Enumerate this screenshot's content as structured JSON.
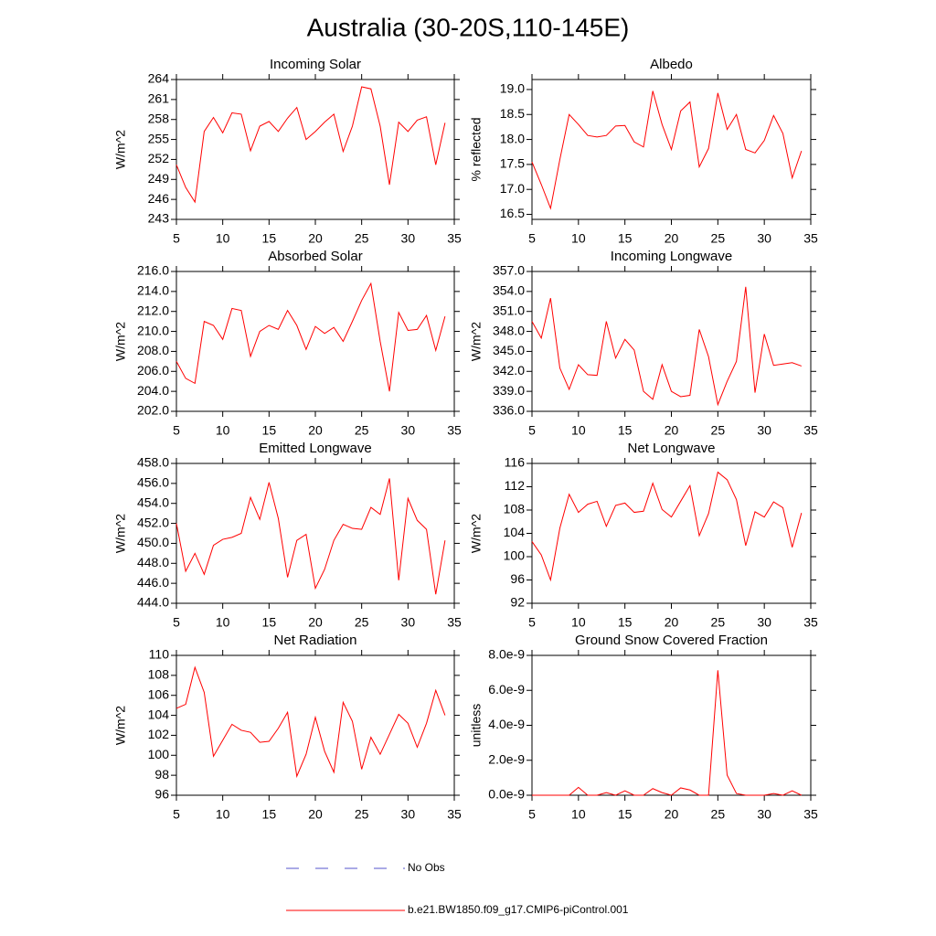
{
  "title": "Australia (30-20S,110-145E)",
  "legend": [
    {
      "name": "No Obs",
      "color": "#5555cc",
      "dash": true
    },
    {
      "name": "b.e21.BW1850.f09_g17.CMIP6-piControl.001",
      "color": "#ff0000",
      "dash": false
    }
  ],
  "chart_data": [
    {
      "type": "line",
      "title": "Incoming Solar",
      "ylabel": "W/m^2",
      "x": [
        5,
        6,
        7,
        8,
        9,
        10,
        11,
        12,
        13,
        14,
        15,
        16,
        17,
        18,
        19,
        20,
        21,
        22,
        23,
        24,
        25,
        26,
        27,
        28,
        29,
        30,
        31,
        32,
        33,
        34
      ],
      "series": [
        {
          "color": "#ff0000",
          "values": [
            251.2,
            247.8,
            245.6,
            256.2,
            258.3,
            256.0,
            259.0,
            258.8,
            253.3,
            257.0,
            257.7,
            256.2,
            258.2,
            259.8,
            255.0,
            256.2,
            257.6,
            258.8,
            253.2,
            257.0,
            262.9,
            262.6,
            257.0,
            248.2,
            257.6,
            256.2,
            257.9,
            258.4,
            251.2,
            257.5
          ]
        }
      ],
      "xlim": [
        5,
        35
      ],
      "xticks": [
        5,
        10,
        15,
        20,
        25,
        30,
        35
      ],
      "ylim": [
        243,
        264
      ],
      "yticks": [
        243,
        246,
        249,
        252,
        255,
        258,
        261,
        264
      ]
    },
    {
      "type": "line",
      "title": "Albedo",
      "ylabel": "% reflected",
      "x": [
        5,
        6,
        7,
        8,
        9,
        10,
        11,
        12,
        13,
        14,
        15,
        16,
        17,
        18,
        19,
        20,
        21,
        22,
        23,
        24,
        25,
        26,
        27,
        28,
        29,
        30,
        31,
        32,
        33,
        34
      ],
      "series": [
        {
          "color": "#ff0000",
          "values": [
            17.55,
            17.1,
            16.62,
            17.6,
            18.5,
            18.3,
            18.08,
            18.05,
            18.08,
            18.27,
            18.28,
            17.95,
            17.85,
            18.97,
            18.3,
            17.8,
            18.57,
            18.75,
            17.45,
            17.82,
            18.93,
            18.2,
            18.5,
            17.8,
            17.73,
            17.98,
            18.48,
            18.12,
            17.23,
            17.77
          ]
        }
      ],
      "xlim": [
        5,
        35
      ],
      "xticks": [
        5,
        10,
        15,
        20,
        25,
        30,
        35
      ],
      "ylim": [
        16.4,
        19.2
      ],
      "yticks": [
        16.5,
        {
          "value": 17,
          "label": "17.0"
        },
        17.5,
        {
          "value": 18,
          "label": "18.0"
        },
        18.5,
        {
          "value": 19,
          "label": "19.0"
        }
      ]
    },
    {
      "type": "line",
      "title": "Absorbed Solar",
      "ylabel": "W/m^2",
      "x": [
        5,
        6,
        7,
        8,
        9,
        10,
        11,
        12,
        13,
        14,
        15,
        16,
        17,
        18,
        19,
        20,
        21,
        22,
        23,
        24,
        25,
        26,
        27,
        28,
        29,
        30,
        31,
        32,
        33,
        34
      ],
      "series": [
        {
          "color": "#ff0000",
          "values": [
            207.0,
            205.3,
            204.8,
            211.0,
            210.6,
            209.2,
            212.3,
            212.1,
            207.5,
            210.0,
            210.6,
            210.2,
            212.1,
            210.6,
            208.2,
            210.5,
            209.8,
            210.4,
            209.0,
            211.0,
            213.1,
            214.8,
            209.0,
            204.0,
            211.9,
            210.1,
            210.2,
            211.6,
            208.1,
            211.5
          ]
        }
      ],
      "xlim": [
        5,
        35
      ],
      "xticks": [
        5,
        10,
        15,
        20,
        25,
        30,
        35
      ],
      "ylim": [
        202,
        216
      ],
      "yticks": [
        {
          "value": 202,
          "label": "202.0"
        },
        {
          "value": 204,
          "label": "204.0"
        },
        {
          "value": 206,
          "label": "206.0"
        },
        {
          "value": 208,
          "label": "208.0"
        },
        {
          "value": 210,
          "label": "210.0"
        },
        {
          "value": 212,
          "label": "212.0"
        },
        {
          "value": 214,
          "label": "214.0"
        },
        {
          "value": 216,
          "label": "216.0"
        }
      ]
    },
    {
      "type": "line",
      "title": "Incoming Longwave",
      "ylabel": "W/m^2",
      "x": [
        5,
        6,
        7,
        8,
        9,
        10,
        11,
        12,
        13,
        14,
        15,
        16,
        17,
        18,
        19,
        20,
        21,
        22,
        23,
        24,
        25,
        26,
        27,
        28,
        29,
        30,
        31,
        32,
        33,
        34
      ],
      "series": [
        {
          "color": "#ff0000",
          "values": [
            349.5,
            347.0,
            353.0,
            342.5,
            339.3,
            343.0,
            341.5,
            341.4,
            349.5,
            344.0,
            346.8,
            345.2,
            339.0,
            337.8,
            343.0,
            339.0,
            338.2,
            338.4,
            348.3,
            344.2,
            337.0,
            340.5,
            343.5,
            354.7,
            338.8,
            347.6,
            342.9,
            343.1,
            343.3,
            342.8
          ]
        }
      ],
      "xlim": [
        5,
        35
      ],
      "xticks": [
        5,
        10,
        15,
        20,
        25,
        30,
        35
      ],
      "ylim": [
        336,
        357
      ],
      "yticks": [
        {
          "value": 336,
          "label": "336.0"
        },
        {
          "value": 339,
          "label": "339.0"
        },
        {
          "value": 342,
          "label": "342.0"
        },
        {
          "value": 345,
          "label": "345.0"
        },
        {
          "value": 348,
          "label": "348.0"
        },
        {
          "value": 351,
          "label": "351.0"
        },
        {
          "value": 354,
          "label": "354.0"
        },
        {
          "value": 357,
          "label": "357.0"
        }
      ]
    },
    {
      "type": "line",
      "title": "Emitted Longwave",
      "ylabel": "W/m^2",
      "x": [
        5,
        6,
        7,
        8,
        9,
        10,
        11,
        12,
        13,
        14,
        15,
        16,
        17,
        18,
        19,
        20,
        21,
        22,
        23,
        24,
        25,
        26,
        27,
        28,
        29,
        30,
        31,
        32,
        33,
        34
      ],
      "series": [
        {
          "color": "#ff0000",
          "values": [
            452.0,
            447.2,
            449.0,
            446.9,
            449.8,
            450.4,
            450.6,
            451.0,
            454.6,
            452.4,
            456.1,
            452.5,
            446.6,
            450.3,
            450.9,
            445.5,
            447.4,
            450.3,
            451.9,
            451.5,
            451.4,
            453.6,
            452.9,
            456.5,
            446.3,
            454.5,
            452.3,
            451.4,
            444.9,
            450.3
          ]
        }
      ],
      "xlim": [
        5,
        35
      ],
      "xticks": [
        5,
        10,
        15,
        20,
        25,
        30,
        35
      ],
      "ylim": [
        444,
        458
      ],
      "yticks": [
        {
          "value": 444,
          "label": "444.0"
        },
        {
          "value": 446,
          "label": "446.0"
        },
        {
          "value": 448,
          "label": "448.0"
        },
        {
          "value": 450,
          "label": "450.0"
        },
        {
          "value": 452,
          "label": "452.0"
        },
        {
          "value": 454,
          "label": "454.0"
        },
        {
          "value": 456,
          "label": "456.0"
        },
        {
          "value": 458,
          "label": "458.0"
        }
      ]
    },
    {
      "type": "line",
      "title": "Net Longwave",
      "ylabel": "W/m^2",
      "x": [
        5,
        6,
        7,
        8,
        9,
        10,
        11,
        12,
        13,
        14,
        15,
        16,
        17,
        18,
        19,
        20,
        21,
        22,
        23,
        24,
        25,
        26,
        27,
        28,
        29,
        30,
        31,
        32,
        33,
        34
      ],
      "series": [
        {
          "color": "#ff0000",
          "values": [
            102.6,
            100.3,
            96.0,
            104.9,
            110.7,
            107.6,
            109.0,
            109.5,
            105.2,
            108.8,
            109.2,
            107.6,
            107.8,
            112.6,
            108.1,
            106.8,
            109.5,
            112.2,
            103.6,
            107.4,
            114.5,
            113.2,
            109.8,
            101.9,
            107.7,
            106.8,
            109.4,
            108.4,
            101.6,
            107.5
          ]
        }
      ],
      "xlim": [
        5,
        35
      ],
      "xticks": [
        5,
        10,
        15,
        20,
        25,
        30,
        35
      ],
      "ylim": [
        92,
        116
      ],
      "yticks": [
        92,
        96,
        100,
        104,
        108,
        112,
        116
      ]
    },
    {
      "type": "line",
      "title": "Net Radiation",
      "ylabel": "W/m^2",
      "x": [
        5,
        6,
        7,
        8,
        9,
        10,
        11,
        12,
        13,
        14,
        15,
        16,
        17,
        18,
        19,
        20,
        21,
        22,
        23,
        24,
        25,
        26,
        27,
        28,
        29,
        30,
        31,
        32,
        33,
        34
      ],
      "series": [
        {
          "color": "#ff0000",
          "values": [
            104.7,
            105.1,
            108.8,
            106.3,
            99.9,
            101.5,
            103.1,
            102.5,
            102.3,
            101.3,
            101.4,
            102.7,
            104.3,
            97.9,
            100.1,
            103.8,
            100.4,
            98.3,
            105.3,
            103.4,
            98.6,
            101.8,
            100.1,
            102.1,
            104.1,
            103.2,
            100.8,
            103.2,
            106.5,
            104.0
          ]
        }
      ],
      "xlim": [
        5,
        35
      ],
      "xticks": [
        5,
        10,
        15,
        20,
        25,
        30,
        35
      ],
      "ylim": [
        96,
        110
      ],
      "yticks": [
        96,
        98,
        100,
        102,
        104,
        106,
        108,
        110
      ]
    },
    {
      "type": "line",
      "title": "Ground Snow Covered Fraction",
      "ylabel": "unitless",
      "x": [
        5,
        6,
        7,
        8,
        9,
        10,
        11,
        12,
        13,
        14,
        15,
        16,
        17,
        18,
        19,
        20,
        21,
        22,
        23,
        24,
        25,
        26,
        27,
        28,
        29,
        30,
        31,
        32,
        33,
        34
      ],
      "series": [
        {
          "color": "#ff0000",
          "values": [
            0,
            0,
            0,
            0,
            0,
            4.5e-10,
            0,
            0,
            1.5e-10,
            0,
            2.5e-10,
            0,
            0,
            3.8e-10,
            1.5e-10,
            0,
            4.2e-10,
            3e-10,
            0,
            0,
            7.15e-09,
            1.15e-09,
            1e-10,
            0,
            0,
            0,
            1e-10,
            0,
            2.5e-10,
            0
          ]
        }
      ],
      "xlim": [
        5,
        35
      ],
      "xticks": [
        5,
        10,
        15,
        20,
        25,
        30,
        35
      ],
      "ylim": [
        0,
        8e-09
      ],
      "yticks": [
        {
          "value": 0,
          "label": "0.0e-9"
        },
        {
          "value": 2e-09,
          "label": "2.0e-9"
        },
        {
          "value": 4e-09,
          "label": "4.0e-9"
        },
        {
          "value": 6e-09,
          "label": "6.0e-9"
        },
        {
          "value": 8e-09,
          "label": "8.0e-9"
        }
      ]
    }
  ]
}
